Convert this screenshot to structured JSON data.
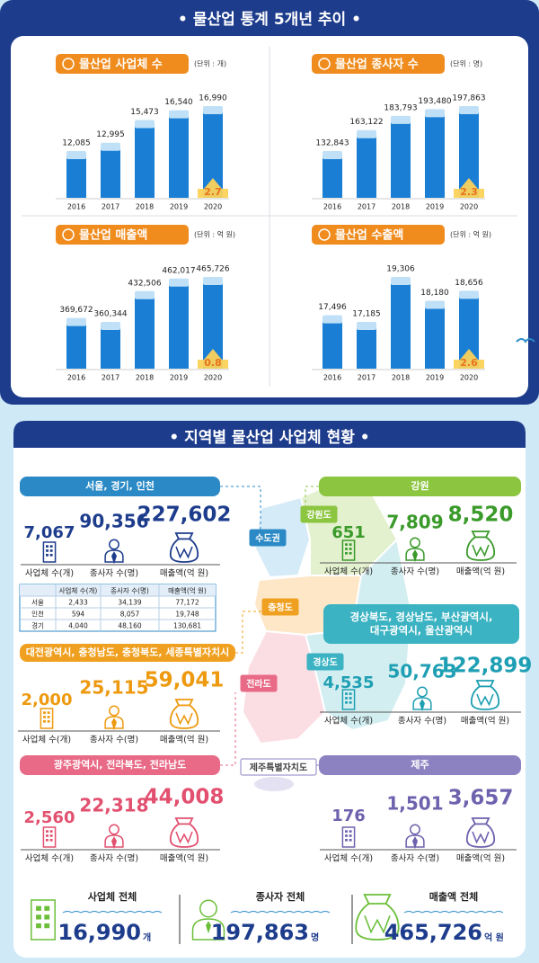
{
  "header": {
    "title": "• 물산업 통계 5개년 추이 •"
  },
  "chart_data": [
    {
      "type": "bar",
      "title": "물산업 사업체 수",
      "unit": "(단위 : 개)",
      "color": "#1a7fd4",
      "categories": [
        "2016",
        "2017",
        "2018",
        "2019",
        "2020"
      ],
      "values": [
        12085,
        12995,
        15473,
        16540,
        16990
      ],
      "value_labels": [
        "12,085",
        "12,995",
        "15,473",
        "16,540",
        "16,990"
      ],
      "annotation": "2.7"
    },
    {
      "type": "bar",
      "title": "물산업 종사자 수",
      "unit": "(단위 : 명)",
      "color": "#1a7fd4",
      "categories": [
        "2016",
        "2017",
        "2018",
        "2019",
        "2020"
      ],
      "values": [
        132843,
        163122,
        183793,
        193480,
        197863
      ],
      "value_labels": [
        "132,843",
        "163,122",
        "183,793",
        "193,480",
        "197,863"
      ],
      "annotation": "2.3"
    },
    {
      "type": "bar",
      "title": "물산업 매출액",
      "unit": "(단위 : 억 원)",
      "color": "#1a7fd4",
      "categories": [
        "2016",
        "2017",
        "2018",
        "2019",
        "2020"
      ],
      "values": [
        369672,
        360344,
        432506,
        462017,
        465726
      ],
      "value_labels": [
        "369,672",
        "360,344",
        "432,506",
        "462,017",
        "465,726"
      ],
      "annotation": "0.8"
    },
    {
      "type": "bar",
      "title": "물산업 수출액",
      "unit": "(단위 : 억 원)",
      "color": "#1a7fd4",
      "categories": [
        "2016",
        "2017",
        "2018",
        "2019",
        "2020"
      ],
      "values": [
        17496,
        17185,
        19306,
        18180,
        18656
      ],
      "value_labels": [
        "17,496",
        "17,185",
        "19,306",
        "18,180",
        "18,656"
      ],
      "annotation": "2.6"
    }
  ],
  "regional": {
    "title": "• 지역별 물산업 사업체 현황 •",
    "metric_labels": [
      "사업체 수(개)",
      "종사자 수(명)",
      "매출액(억 원)"
    ],
    "regions": [
      {
        "name": [
          "서울, 경기, 인천"
        ],
        "color": "#2b8ac6",
        "value_color": "#1d3c8c",
        "values": [
          "7,067",
          "90,356",
          "227,602"
        ]
      },
      {
        "name": [
          "강원"
        ],
        "color": "#8cc540",
        "value_color": "#3a9a2a",
        "values": [
          "651",
          "7,809",
          "8,520"
        ]
      },
      {
        "name": [
          "대전광역시, 충청남도, 충청북도, 세종특별자치시"
        ],
        "color": "#f0a020",
        "value_color": "#ee9a10",
        "values": [
          "2,000",
          "25,115",
          "59,041"
        ]
      },
      {
        "name": [
          "경상북도, 경상남도, 부산광역시,",
          "대구광역시, 울산광역시"
        ],
        "color": "#3bb3c3",
        "value_color": "#1f9fb3",
        "values": [
          "4,535",
          "50,763",
          "122,899"
        ]
      },
      {
        "name": [
          "광주광역시, 전라북도, 전라남도"
        ],
        "color": "#e86a86",
        "value_color": "#e2506f",
        "values": [
          "2,560",
          "22,318",
          "44,008"
        ]
      },
      {
        "name": [
          "제주"
        ],
        "color": "#8c82c2",
        "value_color": "#6d62ad",
        "values": [
          "176",
          "1,501",
          "3,657"
        ]
      }
    ],
    "map_labels": [
      "수도권",
      "강원도",
      "충청도",
      "경상도",
      "전라도",
      "제주특별자치도"
    ],
    "table": {
      "header": [
        "사업체 수(개)",
        "종사자 수(명)",
        "매출액(억 원)"
      ],
      "rows": [
        [
          "서울",
          "2,433",
          "34,139",
          "77,172"
        ],
        [
          "인천",
          "594",
          "8,057",
          "19,748"
        ],
        [
          "경기",
          "4,040",
          "48,160",
          "130,681"
        ]
      ]
    },
    "totals": [
      {
        "label": "사업체 전체",
        "value": "16,990",
        "unit": "개"
      },
      {
        "label": "종사자 전체",
        "value": "197,863",
        "unit": "명"
      },
      {
        "label": "매출액 전체",
        "value": "465,726",
        "unit": "억 원"
      }
    ]
  }
}
